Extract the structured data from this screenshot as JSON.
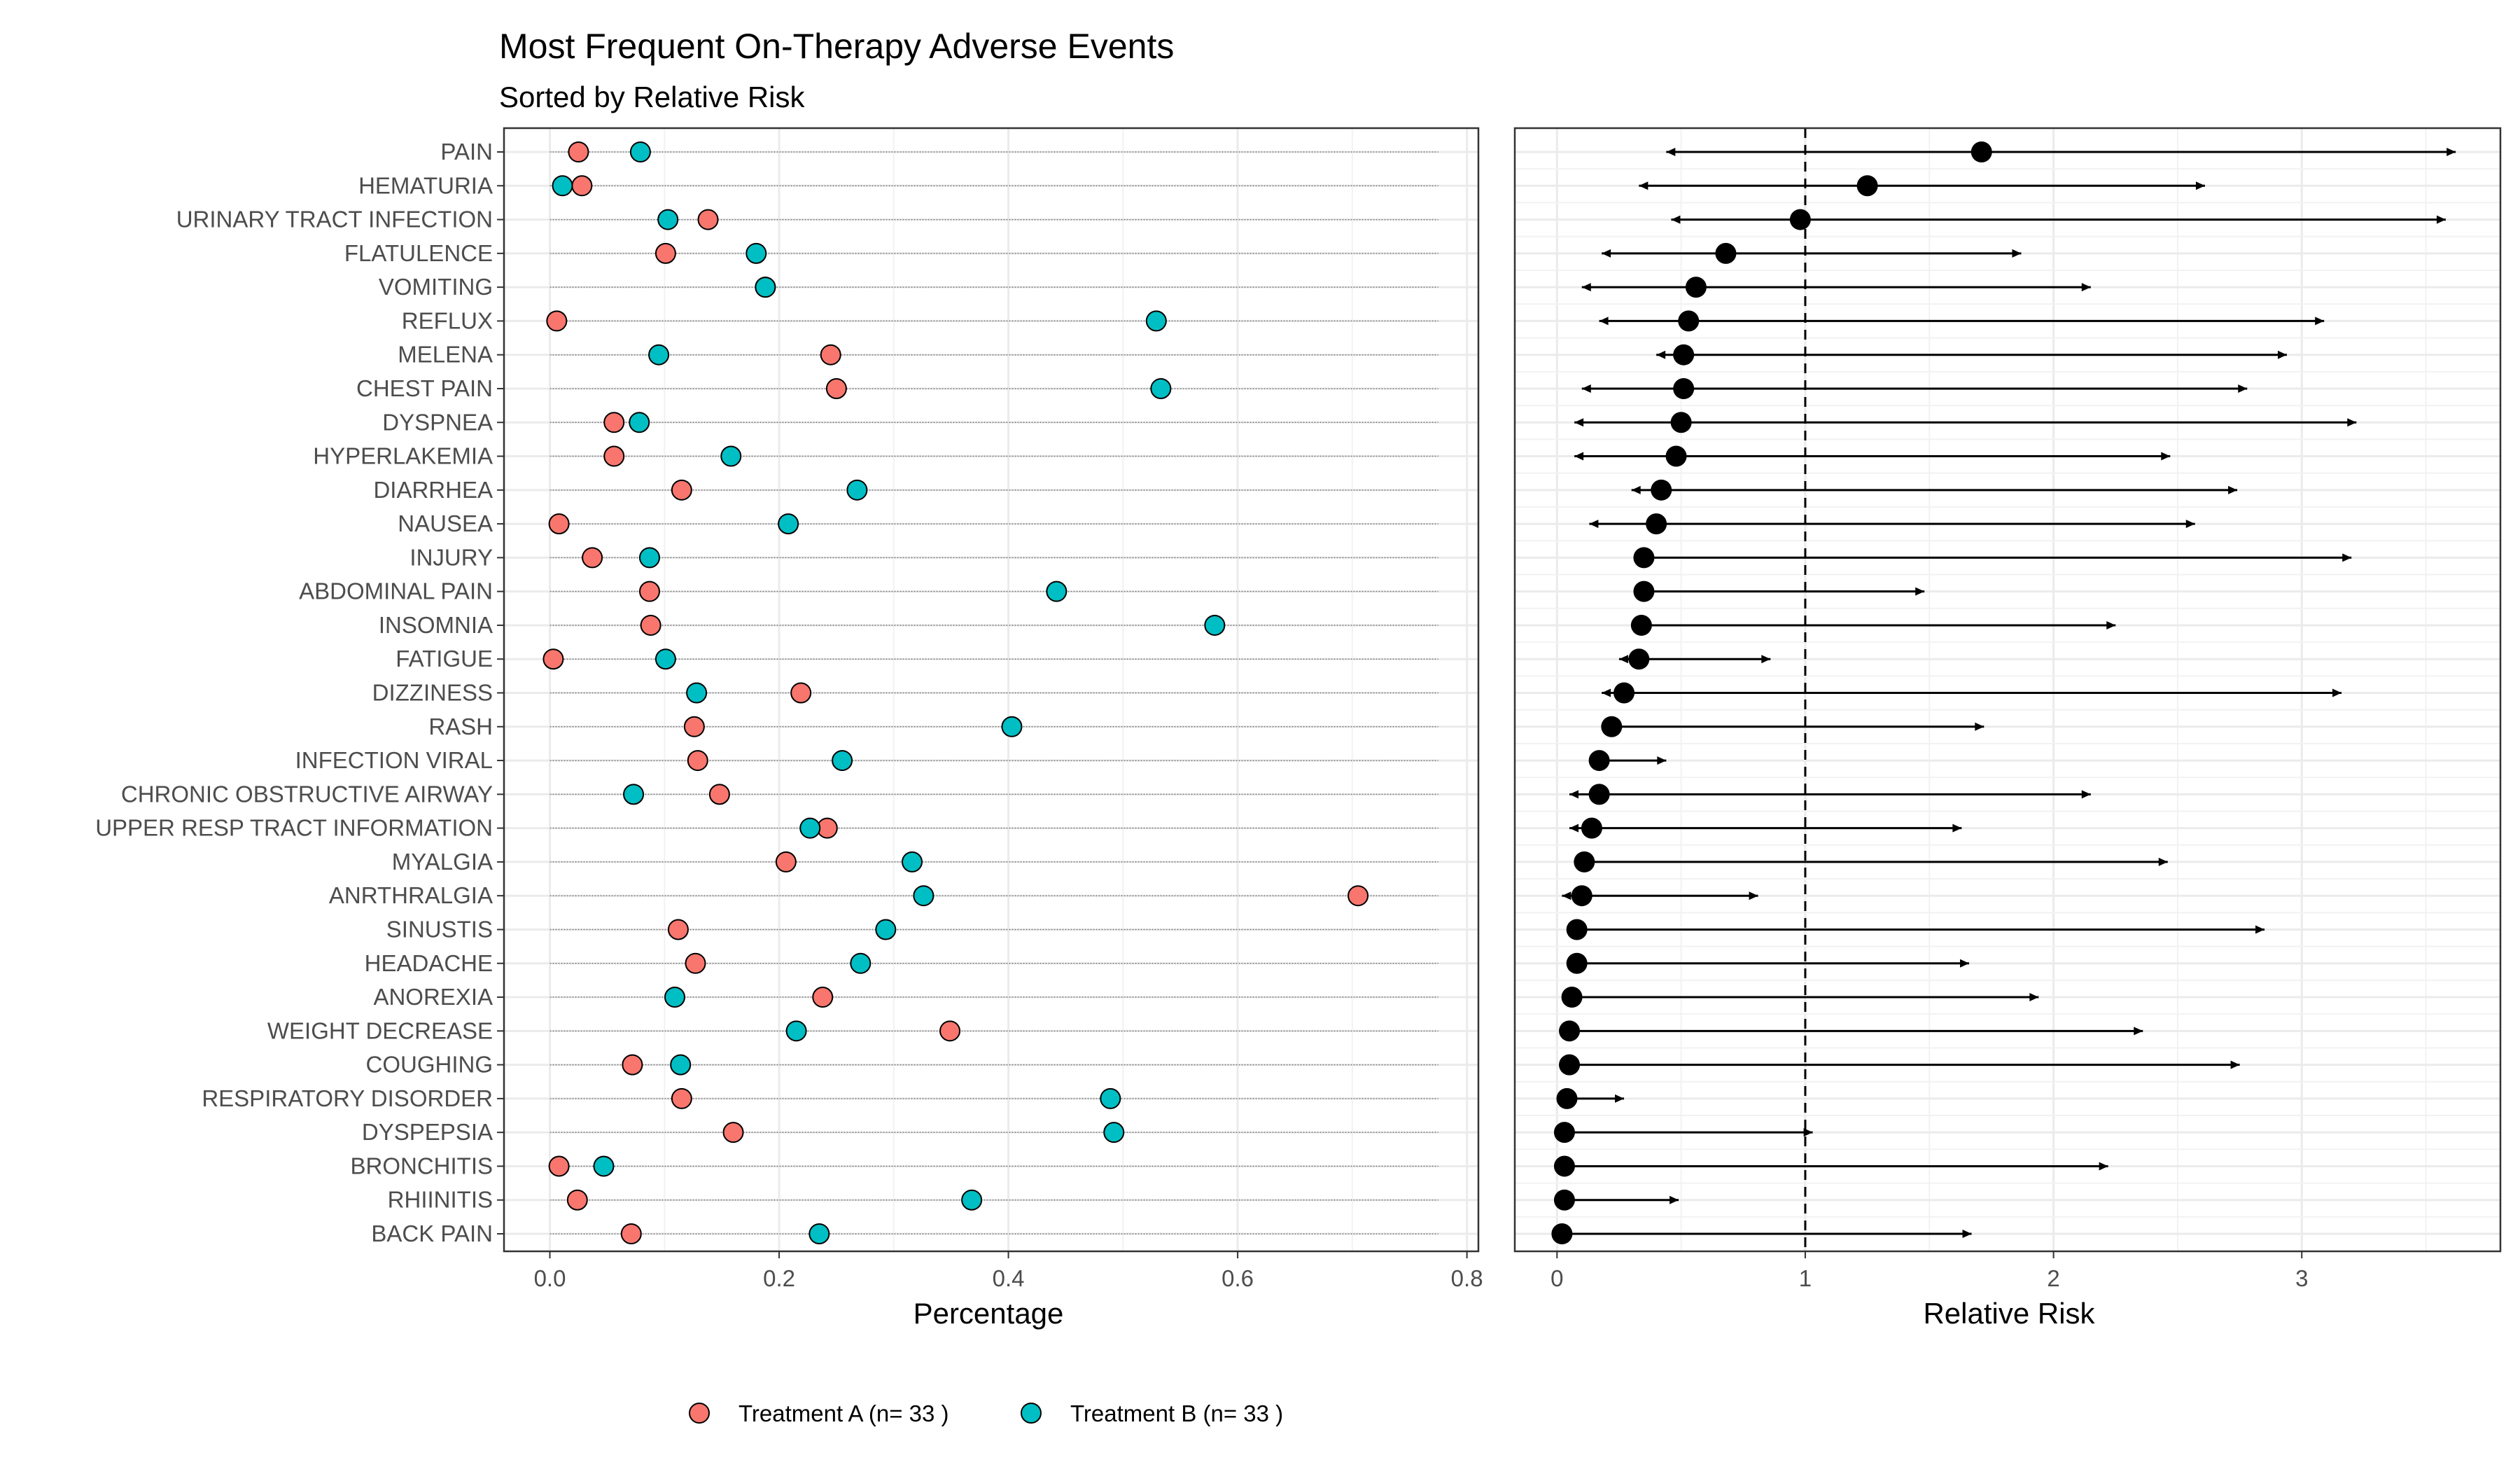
{
  "chart_data": [
    {
      "type": "scatter",
      "title": "Most Frequent On-Therapy Adverse Events",
      "subtitle": "Sorted by Relative Risk",
      "xlabel": "Percentage",
      "ylabel": "",
      "xlim": [
        -0.04,
        0.81
      ],
      "xticks": [
        "0.0",
        "0.2",
        "0.4",
        "0.6",
        "0.8"
      ],
      "grid": true,
      "legend_position": "bottom",
      "categories": [
        "PAIN",
        "HEMATURIA",
        "URINARY TRACT INFECTION",
        "FLATULENCE",
        "VOMITING",
        "REFLUX",
        "MELENA",
        "CHEST PAIN",
        "DYSPNEA",
        "HYPERLAKEMIA",
        "DIARRHEA",
        "NAUSEA",
        "INJURY",
        "ABDOMINAL PAIN",
        "INSOMNIA",
        "FATIGUE",
        "DIZZINESS",
        "RASH",
        "INFECTION VIRAL",
        "CHRONIC OBSTRUCTIVE AIRWAY",
        "UPPER RESP TRACT INFORMATION",
        "MYALGIA",
        "ANRTHRALGIA",
        "SINUSTIS",
        "HEADACHE",
        "ANOREXIA",
        "WEIGHT DECREASE",
        "COUGHING",
        "RESPIRATORY DISORDER",
        "DYSPEPSIA",
        "BRONCHITIS",
        "RHIINITIS",
        "BACK PAIN"
      ],
      "series": [
        {
          "name": "Treatment  A  (n= 33 )",
          "color": "#F8766D",
          "values": [
            0.025,
            0.028,
            0.138,
            0.101,
            0.188,
            0.006,
            0.245,
            0.25,
            0.056,
            0.056,
            0.115,
            0.008,
            0.037,
            0.087,
            0.088,
            0.003,
            0.219,
            0.126,
            0.129,
            0.148,
            0.242,
            0.206,
            0.705,
            0.112,
            0.127,
            0.238,
            0.349,
            0.072,
            0.115,
            0.16,
            0.008,
            0.024,
            0.071
          ]
        },
        {
          "name": "Treatment  B  (n= 33 )",
          "color": "#00BFC4",
          "values": [
            0.079,
            0.011,
            0.103,
            0.18,
            0.188,
            0.529,
            0.095,
            0.533,
            0.078,
            0.158,
            0.268,
            0.208,
            0.087,
            0.442,
            0.58,
            0.101,
            0.128,
            0.403,
            0.255,
            0.073,
            0.227,
            0.316,
            0.326,
            0.293,
            0.271,
            0.109,
            0.215,
            0.114,
            0.489,
            0.492,
            0.047,
            0.368,
            0.235
          ]
        }
      ]
    },
    {
      "type": "scatter",
      "xlabel": "Relative Risk",
      "ylabel": "",
      "xlim": [
        -0.17,
        3.8
      ],
      "xticks": [
        "0",
        "1",
        "2",
        "3"
      ],
      "reference_line": 1,
      "grid": true,
      "categories": [
        "PAIN",
        "HEMATURIA",
        "URINARY TRACT INFECTION",
        "FLATULENCE",
        "VOMITING",
        "REFLUX",
        "MELENA",
        "CHEST PAIN",
        "DYSPNEA",
        "HYPERLAKEMIA",
        "DIARRHEA",
        "NAUSEA",
        "INJURY",
        "ABDOMINAL PAIN",
        "INSOMNIA",
        "FATIGUE",
        "DIZZINESS",
        "RASH",
        "INFECTION VIRAL",
        "CHRONIC OBSTRUCTIVE AIRWAY",
        "UPPER RESP TRACT INFORMATION",
        "MYALGIA",
        "ANRTHRALGIA",
        "SINUSTIS",
        "HEADACHE",
        "ANOREXIA",
        "WEIGHT DECREASE",
        "COUGHING",
        "RESPIRATORY DISORDER",
        "DYSPEPSIA",
        "BRONCHITIS",
        "RHIINITIS",
        "BACK PAIN"
      ],
      "color": "#000000",
      "estimate": [
        1.71,
        1.25,
        0.98,
        0.68,
        0.56,
        0.53,
        0.51,
        0.51,
        0.5,
        0.48,
        0.42,
        0.4,
        0.35,
        0.35,
        0.34,
        0.33,
        0.27,
        0.22,
        0.17,
        0.17,
        0.14,
        0.11,
        0.1,
        0.08,
        0.08,
        0.06,
        0.05,
        0.05,
        0.04,
        0.03,
        0.03,
        0.03,
        0.02
      ],
      "lower": [
        0.44,
        0.33,
        0.46,
        0.18,
        0.1,
        0.17,
        0.4,
        0.1,
        0.07,
        0.07,
        0.3,
        0.13,
        0.35,
        0.35,
        0.34,
        0.25,
        0.18,
        0.22,
        0.17,
        0.05,
        0.05,
        0.11,
        0.02,
        0.08,
        0.08,
        0.06,
        0.05,
        0.05,
        0.04,
        0.03,
        0.03,
        0.03,
        0.02
      ],
      "upper": [
        3.62,
        2.61,
        3.58,
        1.87,
        2.15,
        3.09,
        2.94,
        2.78,
        3.22,
        2.47,
        2.74,
        2.57,
        3.2,
        1.48,
        2.25,
        0.86,
        3.16,
        1.72,
        0.44,
        2.15,
        1.63,
        2.46,
        0.81,
        2.85,
        1.66,
        1.94,
        2.36,
        2.75,
        0.27,
        1.03,
        2.22,
        0.49,
        1.67
      ]
    }
  ]
}
